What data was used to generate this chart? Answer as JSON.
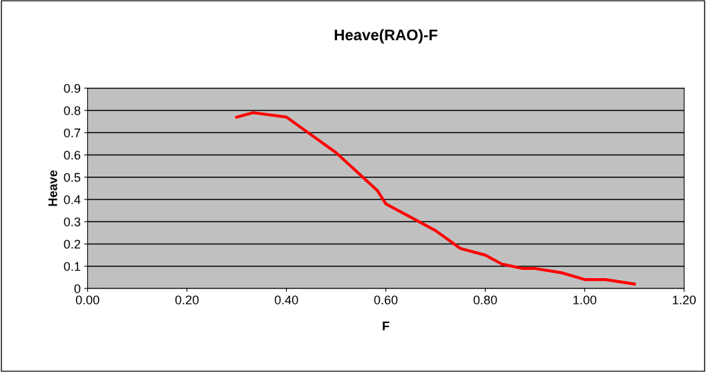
{
  "chart_data": {
    "type": "line",
    "title": "Heave(RAO)-F",
    "xlabel": "F",
    "ylabel": "Heave",
    "x": [
      0.3,
      0.333,
      0.4,
      0.5,
      0.583,
      0.6,
      0.7,
      0.75,
      0.8,
      0.833,
      0.875,
      0.9,
      0.955,
      1.0,
      1.042,
      1.1
    ],
    "series": [
      {
        "color": "#ff0000",
        "values": [
          0.77,
          0.79,
          0.77,
          0.61,
          0.44,
          0.38,
          0.26,
          0.18,
          0.15,
          0.11,
          0.09,
          0.09,
          0.07,
          0.04,
          0.04,
          0.02
        ]
      }
    ],
    "xlim": [
      0,
      1.2
    ],
    "xticks": [
      {
        "value": 0,
        "label": "0.00"
      },
      {
        "value": 0.2,
        "label": "0.20"
      },
      {
        "value": 0.4,
        "label": "0.40"
      },
      {
        "value": 0.6,
        "label": "0.60"
      },
      {
        "value": 0.8,
        "label": "0.80"
      },
      {
        "value": 1.0,
        "label": "1.00"
      },
      {
        "value": 1.2,
        "label": "1.20"
      }
    ],
    "ylim": [
      0,
      0.9
    ],
    "yticks": [
      0,
      0.1,
      0.2,
      0.3,
      0.4,
      0.5,
      0.6,
      0.7,
      0.8,
      0.9
    ],
    "grid": "y",
    "marker": "none",
    "line_style": "solid",
    "legend": false
  }
}
